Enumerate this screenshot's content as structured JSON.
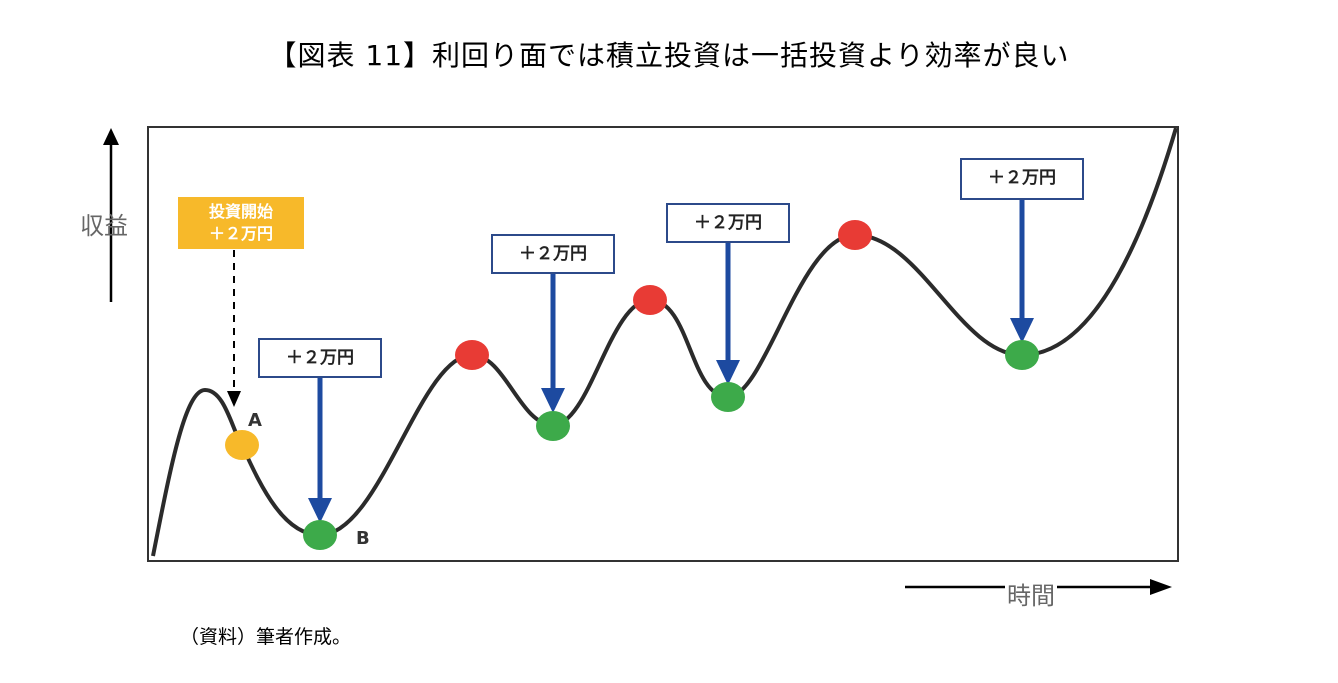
{
  "title": "【図表 11】利回り面では積立投資は一括投資より効率が良い",
  "axes": {
    "y_label": "収益",
    "x_label": "時間"
  },
  "start_box": {
    "line1": "投資開始",
    "line2": "＋２万円"
  },
  "increment_label": "＋２万円",
  "points": {
    "a": "A",
    "b": "B"
  },
  "source": "（資料）筆者作成。",
  "colors": {
    "buy": "#3daa4a",
    "peak": "#e83b35",
    "start": "#f7b92a",
    "arrow": "#1d4aa0",
    "box_border": "#2c4a8a"
  }
}
